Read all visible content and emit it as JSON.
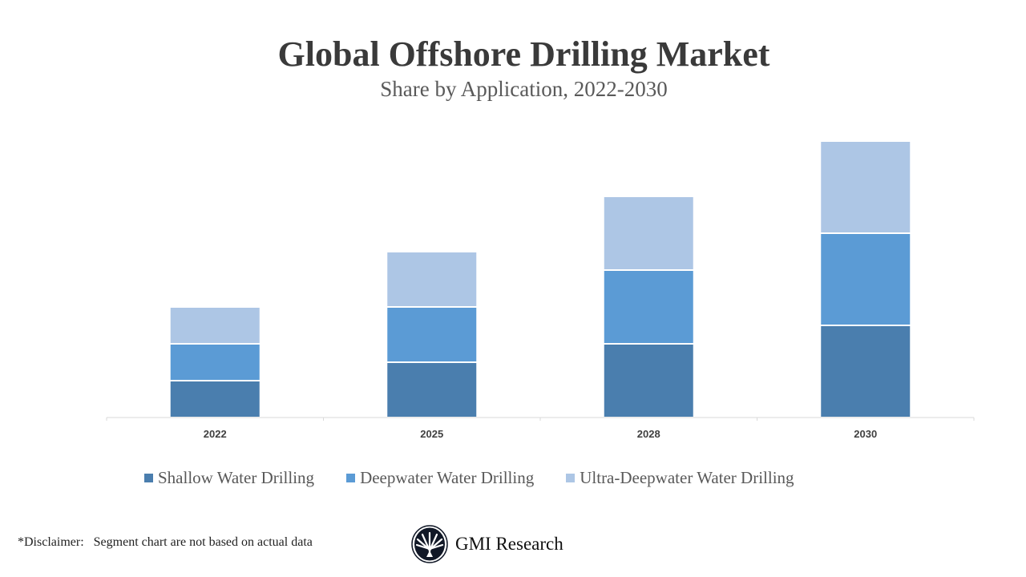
{
  "chart_data": {
    "type": "bar",
    "stacked": true,
    "title": "Global Offshore Drilling Market",
    "subtitle": "Share by Application, 2022-2030",
    "xlabel": "",
    "ylabel": "",
    "categories": [
      "2022",
      "2025",
      "2028",
      "2030"
    ],
    "series": [
      {
        "name": "Shallow Water Drilling",
        "color": "#4a7eae",
        "values": [
          1,
          1.5,
          2,
          2.5
        ]
      },
      {
        "name": "Deepwater Water Drilling",
        "color": "#5b9bd5",
        "values": [
          1,
          1.5,
          2,
          2.5
        ]
      },
      {
        "name": "Ultra-Deepwater Water Drilling",
        "color": "#adc6e5",
        "values": [
          1,
          1.5,
          2,
          2.5
        ]
      }
    ],
    "ylim": [
      0,
      7.5
    ],
    "y_axis_visible": false,
    "grid": false,
    "legend_position": "bottom"
  },
  "footer": {
    "disclaimer": "*Disclaimer:   Segment chart are not based on actual data",
    "brand": "GMI Research"
  }
}
